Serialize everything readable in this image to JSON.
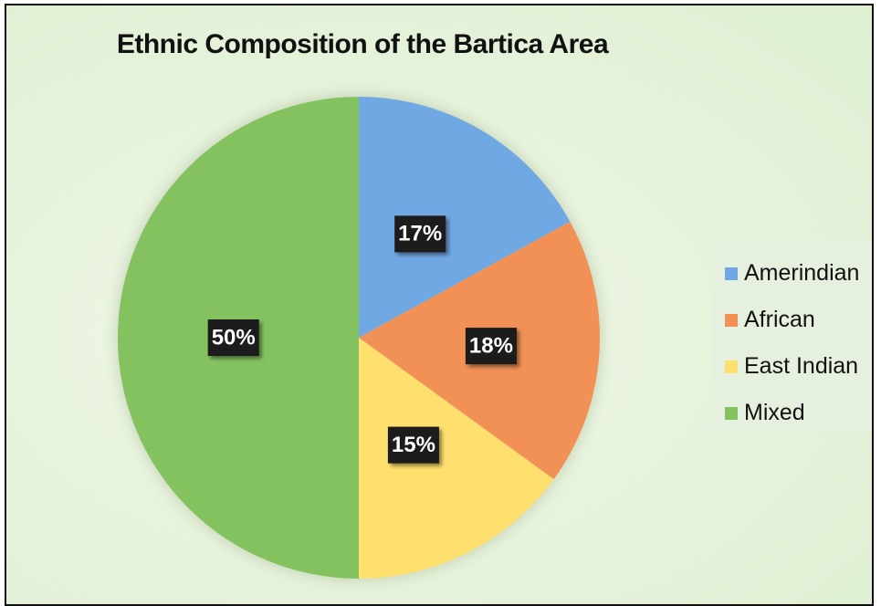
{
  "chart_data": {
    "type": "pie",
    "title": "Ethnic Composition of the Bartica Area",
    "slices": [
      {
        "name": "Amerindian",
        "value": 17,
        "label": "17%",
        "color": "#6fa8e3"
      },
      {
        "name": "African",
        "value": 18,
        "label": "18%",
        "color": "#f29157"
      },
      {
        "name": "East Indian",
        "value": 15,
        "label": "15%",
        "color": "#ffe06e"
      },
      {
        "name": "Mixed",
        "value": 50,
        "label": "50%",
        "color": "#84c261"
      }
    ],
    "legend_position": "right",
    "data_label_style": {
      "background": "#1a1a1a",
      "text_color": "#ffffff"
    }
  }
}
